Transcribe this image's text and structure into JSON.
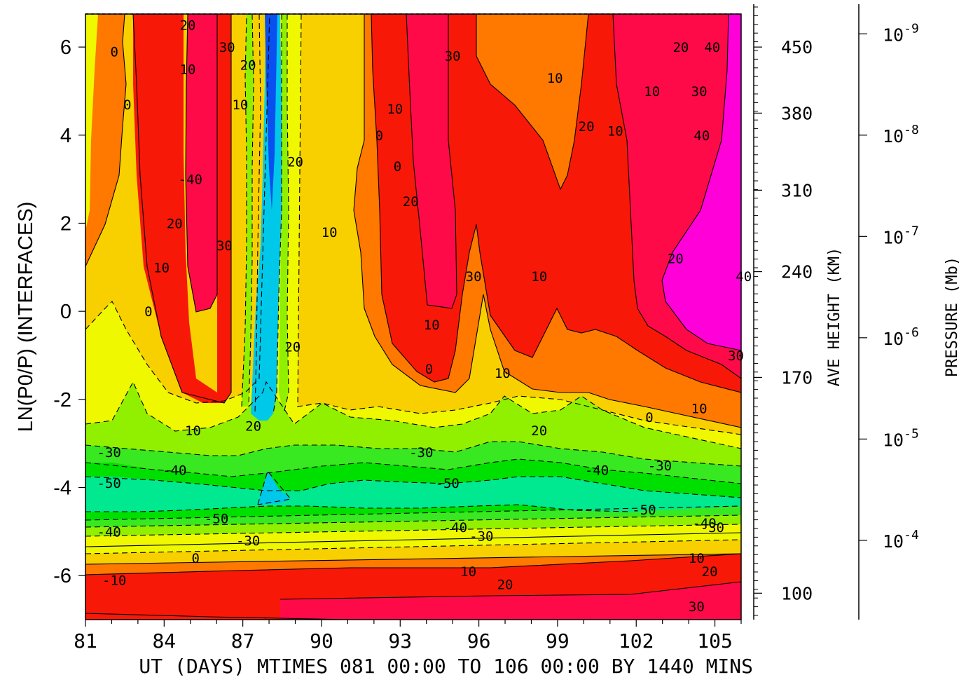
{
  "chart_data": {
    "type": "heatmap",
    "subtype": "filled-contour",
    "xlabel": "UT (DAYS) MTIMES 081 00:00 TO 106 00:00 BY 1440 MINS",
    "ylabel": "LN(P0/P) (INTERFACES)",
    "right_axis_1_label": "AVE HEIGHT (KM)",
    "right_axis_2_label": "PRESSURE (Mb)",
    "xlim": [
      81,
      106
    ],
    "ylim": [
      -7,
      6.75
    ],
    "x_ticks": [
      81,
      84,
      87,
      90,
      93,
      96,
      99,
      102,
      105
    ],
    "y_ticks": [
      -6,
      -4,
      -2,
      0,
      2,
      4,
      6
    ],
    "height_ticks": [
      {
        "label": "450",
        "lnp": 6.0
      },
      {
        "label": "380",
        "lnp": 4.5
      },
      {
        "label": "310",
        "lnp": 2.75
      },
      {
        "label": "240",
        "lnp": 0.9
      },
      {
        "label": "170",
        "lnp": -1.5
      },
      {
        "label": "100",
        "lnp": -6.4
      }
    ],
    "pressure_ticks": [
      {
        "mantissa": "10",
        "exp": "-9",
        "lnp": 6.3
      },
      {
        "mantissa": "10",
        "exp": "-8",
        "lnp": 4.0
      },
      {
        "mantissa": "10",
        "exp": "-7",
        "lnp": 1.7
      },
      {
        "mantissa": "10",
        "exp": "-6",
        "lnp": -0.6
      },
      {
        "mantissa": "10",
        "exp": "-5",
        "lnp": -2.9
      },
      {
        "mantissa": "10",
        "exp": "-4",
        "lnp": -5.2
      }
    ],
    "contour_levels": [
      -60,
      -50,
      -40,
      -30,
      -20,
      -10,
      0,
      10,
      20,
      30,
      40
    ],
    "negative_contours_dashed": true,
    "colors": {
      "lt_m60": "#0a50f0",
      "m60_m50": "#00c8e8",
      "m50_m40": "#00e890",
      "m40_m30": "#00e000",
      "m30_m20": "#38e820",
      "m20_m10": "#90f000",
      "m10_0": "#f0f800",
      "0_10": "#f8d000",
      "10_20": "#ff7800",
      "20_30": "#f81808",
      "30_40": "#ff0a48",
      "gt_40": "#ff00d8"
    },
    "contour_labels": [
      {
        "text": "20",
        "x": 84.9,
        "y": 6.5
      },
      {
        "text": "30",
        "x": 86.4,
        "y": 6.0
      },
      {
        "text": "0",
        "x": 82.1,
        "y": 5.9
      },
      {
        "text": "10",
        "x": 84.9,
        "y": 5.5
      },
      {
        "text": "0",
        "x": 82.6,
        "y": 4.7
      },
      {
        "text": "-40",
        "x": 85.0,
        "y": 3.0
      },
      {
        "text": "20",
        "x": 84.4,
        "y": 2.0
      },
      {
        "text": "30",
        "x": 86.3,
        "y": 1.5
      },
      {
        "text": "10",
        "x": 83.9,
        "y": 1.0
      },
      {
        "text": "0",
        "x": 83.4,
        "y": 0.0
      },
      {
        "text": "20",
        "x": 87.2,
        "y": 5.6
      },
      {
        "text": "10",
        "x": 86.9,
        "y": 4.7
      },
      {
        "text": "20",
        "x": 89.0,
        "y": 3.4
      },
      {
        "text": "20",
        "x": 88.9,
        "y": -0.8
      },
      {
        "text": "10",
        "x": 90.3,
        "y": 1.8
      },
      {
        "text": "30",
        "x": 95.0,
        "y": 5.8
      },
      {
        "text": "10",
        "x": 92.8,
        "y": 4.6
      },
      {
        "text": "0",
        "x": 92.2,
        "y": 4.0
      },
      {
        "text": "0",
        "x": 92.9,
        "y": 3.3
      },
      {
        "text": "20",
        "x": 93.4,
        "y": 2.5
      },
      {
        "text": "30",
        "x": 95.8,
        "y": 0.8
      },
      {
        "text": "10",
        "x": 94.2,
        "y": -0.3
      },
      {
        "text": "0",
        "x": 94.1,
        "y": -1.3
      },
      {
        "text": "10",
        "x": 96.9,
        "y": -1.4
      },
      {
        "text": "10",
        "x": 98.9,
        "y": 5.3
      },
      {
        "text": "20",
        "x": 100.1,
        "y": 4.2
      },
      {
        "text": "10",
        "x": 101.2,
        "y": 4.1
      },
      {
        "text": "10",
        "x": 102.6,
        "y": 5.0
      },
      {
        "text": "20",
        "x": 103.7,
        "y": 6.0
      },
      {
        "text": "30",
        "x": 104.4,
        "y": 5.0
      },
      {
        "text": "40",
        "x": 104.9,
        "y": 6.0
      },
      {
        "text": "40",
        "x": 104.5,
        "y": 4.0
      },
      {
        "text": "10",
        "x": 98.3,
        "y": 0.8
      },
      {
        "text": "20",
        "x": 103.5,
        "y": 1.2
      },
      {
        "text": "40",
        "x": 106.1,
        "y": 0.8
      },
      {
        "text": "30",
        "x": 105.8,
        "y": -1.0
      },
      {
        "text": "0",
        "x": 102.5,
        "y": -2.4
      },
      {
        "text": "10",
        "x": 104.4,
        "y": -2.2
      },
      {
        "text": "20",
        "x": 98.3,
        "y": -2.7
      },
      {
        "text": "10",
        "x": 85.1,
        "y": -2.7
      },
      {
        "text": "20",
        "x": 87.4,
        "y": -2.6
      },
      {
        "text": "-30",
        "x": 81.9,
        "y": -3.2
      },
      {
        "text": "-30",
        "x": 93.8,
        "y": -3.2
      },
      {
        "text": "-40",
        "x": 84.4,
        "y": -3.6
      },
      {
        "text": "-30",
        "x": 102.9,
        "y": -3.5
      },
      {
        "text": "-40",
        "x": 100.5,
        "y": -3.6
      },
      {
        "text": "-50",
        "x": 81.9,
        "y": -3.9
      },
      {
        "text": "-50",
        "x": 94.8,
        "y": -3.9
      },
      {
        "text": "-50",
        "x": 102.3,
        "y": -4.5
      },
      {
        "text": "-50",
        "x": 86.0,
        "y": -4.7
      },
      {
        "text": "-40",
        "x": 81.9,
        "y": -5.0
      },
      {
        "text": "-40",
        "x": 95.1,
        "y": -4.9
      },
      {
        "text": "-40",
        "x": 104.6,
        "y": -4.8
      },
      {
        "text": "-30",
        "x": 104.9,
        "y": -4.9
      },
      {
        "text": "-30",
        "x": 87.2,
        "y": -5.2
      },
      {
        "text": "-30",
        "x": 96.1,
        "y": -5.1
      },
      {
        "text": "0",
        "x": 85.2,
        "y": -5.6
      },
      {
        "text": "10",
        "x": 95.6,
        "y": -5.9
      },
      {
        "text": "10",
        "x": 104.3,
        "y": -5.6
      },
      {
        "text": "-10",
        "x": 82.1,
        "y": -6.1
      },
      {
        "text": "20",
        "x": 97.0,
        "y": -6.2
      },
      {
        "text": "20",
        "x": 104.8,
        "y": -5.9
      },
      {
        "text": "30",
        "x": 104.3,
        "y": -6.7
      }
    ]
  }
}
